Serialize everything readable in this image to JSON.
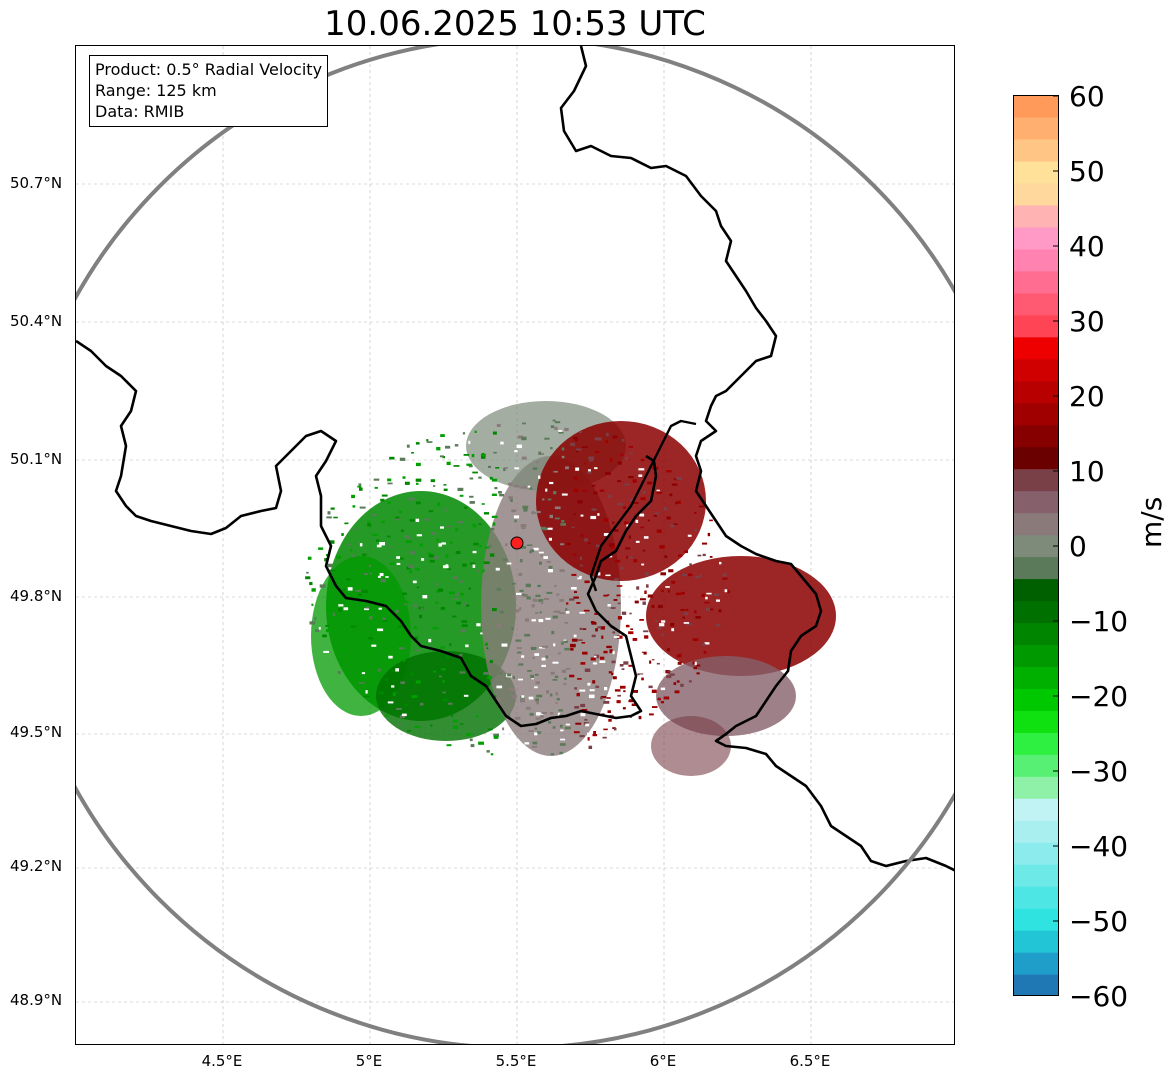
{
  "title": "10.06.2025 10:53 UTC",
  "info": {
    "product": "Product: 0.5° Radial Velocity",
    "range": "Range: 125 km",
    "data": "Data: RMIB"
  },
  "lat_labels": [
    "50.7°N",
    "50.4°N",
    "50.1°N",
    "49.8°N",
    "49.5°N",
    "49.2°N",
    "48.9°N"
  ],
  "lon_labels": [
    "4.5°E",
    "5°E",
    "5.5°E",
    "6°E",
    "6.5°E"
  ],
  "colorbar": {
    "unit": "m/s",
    "min": -60,
    "max": 60,
    "tick_labels": [
      "60",
      "50",
      "40",
      "30",
      "20",
      "10",
      "0",
      "−10",
      "−20",
      "−30",
      "−40",
      "−50",
      "−60"
    ],
    "colors_low_to_high": [
      "#1f78b4",
      "#1f9ec9",
      "#22c5d6",
      "#2ee3e0",
      "#4ee6e4",
      "#6de9e8",
      "#8ceced",
      "#a9eff0",
      "#c1f3f4",
      "#8ff0a8",
      "#58f074",
      "#2ef040",
      "#0fe010",
      "#00c800",
      "#00b000",
      "#009a00",
      "#008500",
      "#007000",
      "#006000",
      "#5a7a5a",
      "#7e8a7a",
      "#8a7a7a",
      "#86606a",
      "#7a4048",
      "#6b0000",
      "#860000",
      "#a00000",
      "#b80000",
      "#d00000",
      "#ee0000",
      "#ff4455",
      "#ff5a72",
      "#ff6e90",
      "#ff82b0",
      "#ff9ac6",
      "#ffb3b3",
      "#ffd89e",
      "#ffe19a",
      "#ffc585",
      "#ffb070",
      "#ff9a5a"
    ]
  },
  "radar": {
    "site_marker_color": "#ff2020",
    "range_ring_color": "#808080",
    "inbound_color": "#008800",
    "outbound_color": "#8b0000",
    "near_zero_color": "#8a7a7a"
  }
}
